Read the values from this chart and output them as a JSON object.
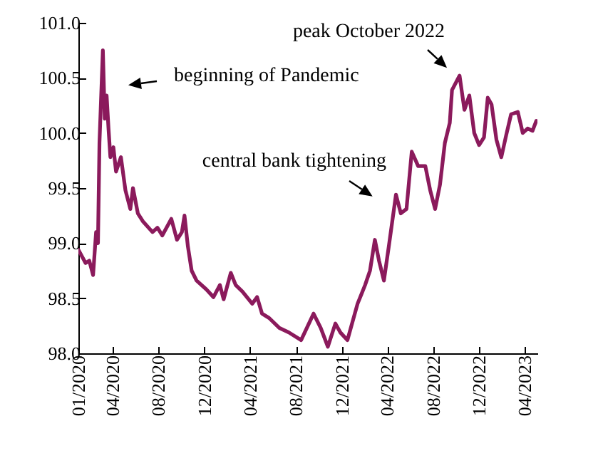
{
  "chart_data": {
    "type": "line",
    "series": [
      {
        "color": "#8b1a5c",
        "x": [
          "2020-01-01",
          "2020-01-20",
          "2020-01-30",
          "2020-02-09",
          "2020-02-17",
          "2020-02-22",
          "2020-02-26",
          "2020-03-06",
          "2020-03-11",
          "2020-03-16",
          "2020-03-21",
          "2020-03-26",
          "2020-04-03",
          "2020-04-10",
          "2020-04-23",
          "2020-05-05",
          "2020-05-18",
          "2020-05-25",
          "2020-06-07",
          "2020-06-20",
          "2020-07-16",
          "2020-07-29",
          "2020-08-11",
          "2020-09-04",
          "2020-09-19",
          "2020-10-02",
          "2020-10-09",
          "2020-10-18",
          "2020-10-28",
          "2020-11-10",
          "2020-12-06",
          "2020-12-25",
          "2021-01-11",
          "2021-01-21",
          "2021-02-09",
          "2021-02-22",
          "2021-03-12",
          "2021-04-07",
          "2021-04-20",
          "2021-05-03",
          "2021-05-22",
          "2021-06-18",
          "2021-07-13",
          "2021-08-15",
          "2021-09-17",
          "2021-10-06",
          "2021-10-25",
          "2021-11-14",
          "2021-11-27",
          "2021-12-16",
          "2022-01-12",
          "2022-02-01",
          "2022-02-14",
          "2022-02-27",
          "2022-03-10",
          "2022-03-23",
          "2022-04-05",
          "2022-04-24",
          "2022-05-07",
          "2022-05-22",
          "2022-06-05",
          "2022-06-22",
          "2022-07-11",
          "2022-07-24",
          "2022-08-06",
          "2022-08-19",
          "2022-09-01",
          "2022-09-14",
          "2022-09-20",
          "2022-10-10",
          "2022-10-23",
          "2022-11-05",
          "2022-11-18",
          "2022-12-01",
          "2022-12-14",
          "2022-12-24",
          "2023-01-03",
          "2023-01-16",
          "2023-01-29",
          "2023-02-11",
          "2023-02-24",
          "2023-03-14",
          "2023-03-27",
          "2023-04-09",
          "2023-04-22",
          "2023-05-02"
        ],
        "values": [
          98.94,
          98.82,
          98.84,
          98.71,
          99.1,
          99.0,
          99.91,
          100.75,
          100.13,
          100.34,
          100.04,
          99.78,
          99.87,
          99.65,
          99.78,
          99.48,
          99.31,
          99.5,
          99.27,
          99.2,
          99.1,
          99.14,
          99.07,
          99.22,
          99.03,
          99.1,
          99.25,
          98.97,
          98.75,
          98.66,
          98.58,
          98.51,
          98.62,
          98.49,
          98.73,
          98.62,
          98.56,
          98.45,
          98.51,
          98.36,
          98.32,
          98.23,
          98.19,
          98.12,
          98.36,
          98.23,
          98.06,
          98.27,
          98.19,
          98.12,
          98.45,
          98.62,
          98.75,
          99.03,
          98.84,
          98.66,
          98.97,
          99.44,
          99.27,
          99.31,
          99.83,
          99.7,
          99.7,
          99.48,
          99.31,
          99.53,
          99.91,
          100.09,
          100.39,
          100.52,
          100.21,
          100.34,
          100.0,
          99.89,
          99.96,
          100.32,
          100.26,
          99.94,
          99.78,
          99.98,
          100.17,
          100.19,
          100.0,
          100.04,
          100.02,
          100.11
        ]
      }
    ],
    "xlim": [
      "2020-01-01",
      "2023-05-05"
    ],
    "xticks": [
      {
        "value": "2020-01-01",
        "label": "01/2020"
      },
      {
        "value": "2020-04-01",
        "label": "04/2020"
      },
      {
        "value": "2020-08-01",
        "label": "08/2020"
      },
      {
        "value": "2020-12-01",
        "label": "12/2020"
      },
      {
        "value": "2021-04-01",
        "label": "04/2021"
      },
      {
        "value": "2021-08-01",
        "label": "08/2021"
      },
      {
        "value": "2021-12-01",
        "label": "12/2021"
      },
      {
        "value": "2022-04-01",
        "label": "04/2022"
      },
      {
        "value": "2022-08-01",
        "label": "08/2022"
      },
      {
        "value": "2022-12-01",
        "label": "12/2022"
      },
      {
        "value": "2023-04-01",
        "label": "04/2023"
      }
    ],
    "ylim": [
      98.0,
      101.0
    ],
    "yticks": [
      {
        "value": 98,
        "label": "98.0"
      },
      {
        "value": 98.5,
        "label": "98.5"
      },
      {
        "value": 99,
        "label": "99.0"
      },
      {
        "value": 99.5,
        "label": "99.5"
      },
      {
        "value": 100,
        "label": "100.0"
      },
      {
        "value": 100.5,
        "label": "100.5"
      },
      {
        "value": 101,
        "label": "101.0"
      }
    ],
    "annotations": [
      "beginning of Pandemic",
      "central bank tightening",
      "peak October 2022"
    ],
    "grid": false,
    "marker": "none",
    "line_style": "solid"
  }
}
